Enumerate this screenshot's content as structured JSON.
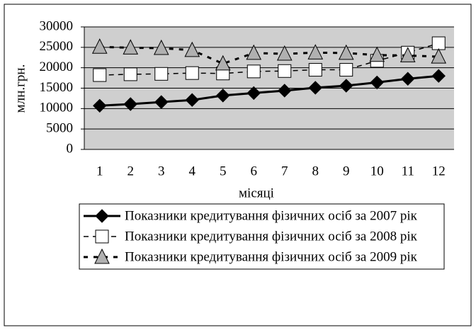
{
  "chart_data": {
    "type": "line",
    "x_label": "місяці",
    "y_label": "млн.грн.",
    "categories": [
      "1",
      "2",
      "3",
      "4",
      "5",
      "6",
      "7",
      "8",
      "9",
      "10",
      "11",
      "12"
    ],
    "series": [
      {
        "name": "Показники кредитування фізичних осіб за 2007 рік",
        "color": "#000000",
        "marker": "diamond",
        "marker_fill": "#000000",
        "dash": "solid",
        "values": [
          10700,
          11100,
          11600,
          12100,
          13200,
          13800,
          14400,
          15100,
          15600,
          16400,
          17300,
          18000
        ]
      },
      {
        "name": "Показники кредитування фізичних осіб за 2008 рік",
        "color": "#000000",
        "marker": "square",
        "marker_fill": "#ffffff",
        "dash": "dashed",
        "values": [
          18200,
          18400,
          18500,
          18700,
          18600,
          19100,
          19200,
          19500,
          19500,
          21700,
          23700,
          26000
        ]
      },
      {
        "name": "Показники кредитування фізичних осіб за 2009 рік",
        "color": "#000000",
        "marker": "triangle",
        "marker_fill": "#b0b0b0",
        "dash": "bold-dashed",
        "values": [
          25100,
          24900,
          24800,
          24300,
          21000,
          23600,
          23400,
          23700,
          23600,
          23100,
          23000,
          22700
        ]
      }
    ],
    "ylim": [
      0,
      30000
    ],
    "yticks": [
      0,
      5000,
      10000,
      15000,
      20000,
      25000,
      30000
    ],
    "grid": true,
    "legend": "bottom"
  }
}
